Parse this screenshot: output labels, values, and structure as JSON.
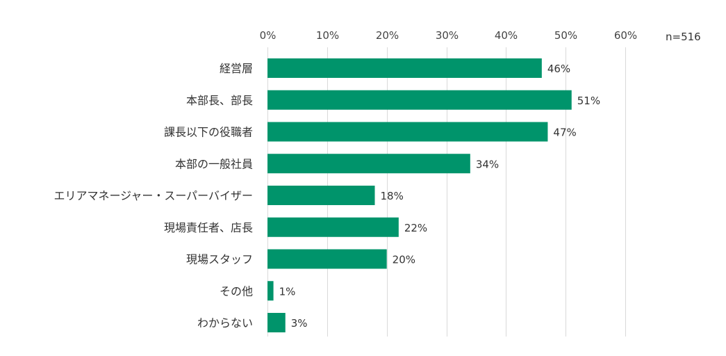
{
  "chart_data": {
    "type": "bar",
    "orientation": "horizontal",
    "categories": [
      "経営層",
      "本部長、部長",
      "課長以下の役職者",
      "本部の一般社員",
      "エリアマネージャー・スーパーバイザー",
      "現場責任者、店長",
      "現場スタッフ",
      "その他",
      "わからない"
    ],
    "values": [
      46,
      51,
      47,
      34,
      18,
      22,
      20,
      1,
      3
    ],
    "value_labels": [
      "46%",
      "51%",
      "47%",
      "34%",
      "18%",
      "22%",
      "20%",
      "1%",
      "3%"
    ],
    "xlim": [
      0,
      60
    ],
    "x_ticks": [
      0,
      10,
      20,
      30,
      40,
      50,
      60
    ],
    "x_tick_labels": [
      "0%",
      "10%",
      "20%",
      "30%",
      "40%",
      "50%",
      "60%"
    ],
    "x_axis_position": "top",
    "grid": true,
    "bar_color": "#00946b",
    "annotation": "n=516"
  }
}
